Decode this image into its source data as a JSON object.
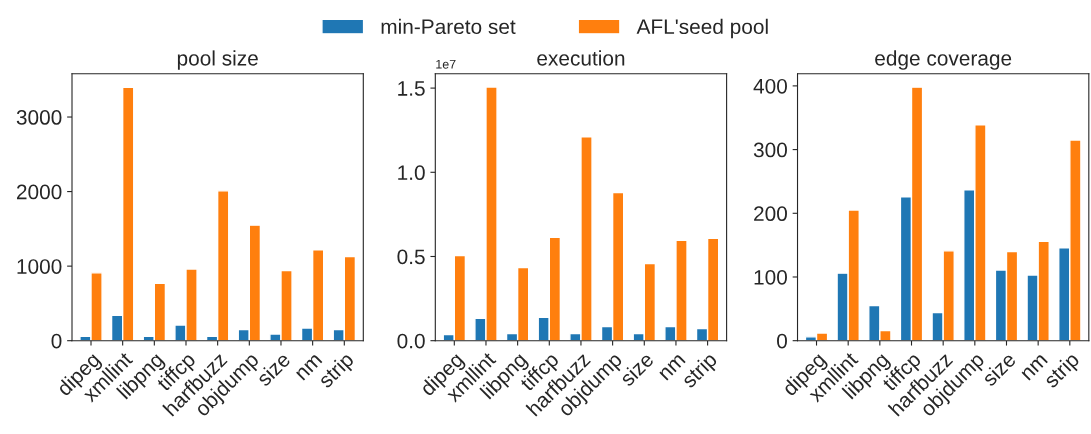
{
  "chart_data": [
    {
      "type": "bar",
      "title": "pool size",
      "legend": "top",
      "categories": [
        "dipeg",
        "xmllint",
        "libpng",
        "tiffcp",
        "harfbuzz",
        "objdump",
        "size",
        "nm",
        "strip"
      ],
      "series": [
        {
          "name": "min-Pareto set",
          "color": "#1f77b4",
          "values": [
            60,
            340,
            60,
            210,
            60,
            150,
            90,
            170,
            150
          ]
        },
        {
          "name": "AFL'seed pool",
          "color": "#ff7f0e",
          "values": [
            910,
            3400,
            770,
            960,
            2010,
            1550,
            940,
            1220,
            1130
          ]
        }
      ],
      "ylim": [
        0,
        3580
      ],
      "yticks": [
        0,
        1000,
        2000,
        3000
      ]
    },
    {
      "type": "bar",
      "title": "execution",
      "annotations": [
        "1e7"
      ],
      "categories": [
        "dipeg",
        "xmllint",
        "libpng",
        "tiffcp",
        "harfbuzz",
        "objdump",
        "size",
        "nm",
        "strip"
      ],
      "series": [
        {
          "color": "#1f77b4",
          "values": [
            0.036,
            0.133,
            0.042,
            0.139,
            0.042,
            0.084,
            0.042,
            0.084,
            0.072
          ]
        },
        {
          "color": "#ff7f0e",
          "values": [
            0.506,
            1.506,
            0.434,
            0.614,
            1.211,
            0.88,
            0.458,
            0.596,
            0.608
          ]
        }
      ],
      "ylim": [
        0,
        1.585
      ],
      "yticks": [
        {
          "value": 0,
          "label": "0.0"
        },
        0.5,
        {
          "value": 1,
          "label": "1.0"
        },
        1.5
      ]
    },
    {
      "type": "bar",
      "title": "edge coverage",
      "categories": [
        "dipeg",
        "xmllint",
        "libpng",
        "tiffcp",
        "harfbuzz",
        "objdump",
        "size",
        "nm",
        "strip"
      ],
      "series": [
        {
          "color": "#1f77b4",
          "values": [
            6,
            106,
            55,
            226,
            44,
            237,
            111,
            103,
            146
          ]
        },
        {
          "color": "#ff7f0e",
          "values": [
            12,
            205,
            16,
            398,
            141,
            339,
            140,
            156,
            315
          ]
        }
      ],
      "ylim": [
        0,
        419
      ],
      "yticks": [
        0,
        100,
        200,
        300,
        400
      ]
    }
  ]
}
